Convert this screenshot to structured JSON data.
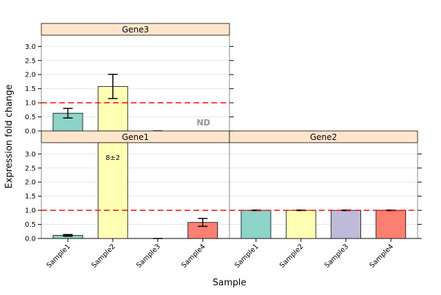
{
  "chart_data": {
    "type": "bar",
    "title": "",
    "xlabel": "Sample",
    "ylabel": "Expression fold change",
    "ylim": [
      0,
      3.4
    ],
    "yticks": [
      "0.0",
      "0.5",
      "1.0",
      "1.5",
      "2.0",
      "2.5",
      "3.0"
    ],
    "ytick_values": [
      0,
      0.5,
      1.0,
      1.5,
      2.0,
      2.5,
      3.0
    ],
    "reference_line": 1.0,
    "categories": [
      "Sample1",
      "Sample2",
      "Sample3",
      "Sample4"
    ],
    "colors": [
      "#8dd3c7",
      "#ffffb3",
      "#bebada",
      "#fb8072"
    ],
    "strip_color": "#ffe5cc",
    "reference_color": "#ff0000",
    "panels": [
      {
        "name": "Gene3",
        "values": [
          0.63,
          1.58,
          0.0,
          null
        ],
        "errors": [
          0.17,
          0.43,
          0.0,
          null
        ],
        "annotations": [
          {
            "category": "Sample4",
            "text": "ND"
          }
        ]
      },
      {
        "name": "Gene1",
        "values": [
          0.11,
          3.4,
          0.0,
          0.57
        ],
        "errors": [
          0.03,
          null,
          0.0,
          0.14
        ],
        "annotations": [
          {
            "category": "Sample2",
            "text": "8±2"
          }
        ]
      },
      {
        "name": "Gene2",
        "values": [
          1.0,
          1.0,
          1.0,
          1.0
        ],
        "errors": [
          0.01,
          0.01,
          0.01,
          0.01
        ],
        "annotations": []
      }
    ]
  }
}
